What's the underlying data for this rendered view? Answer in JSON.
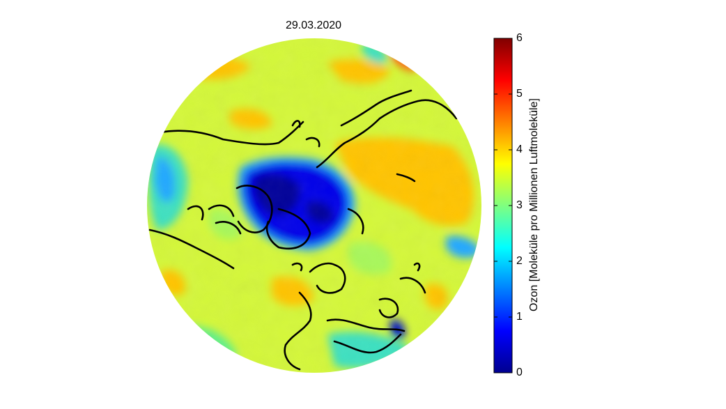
{
  "title": "29.03.2020",
  "colorbar": {
    "label": "Ozon [Moleküle pro Millionen Luftmoleküle]",
    "min": 0,
    "max": 6,
    "ticks": [
      {
        "value": 0,
        "label": "0"
      },
      {
        "value": 1,
        "label": "1"
      },
      {
        "value": 2,
        "label": "2"
      },
      {
        "value": 3,
        "label": "3"
      },
      {
        "value": 4,
        "label": "4"
      },
      {
        "value": 5,
        "label": "5"
      },
      {
        "value": 6,
        "label": "6"
      }
    ],
    "colormap": "jet",
    "colors": [
      "#00008f",
      "#0000ff",
      "#00ffff",
      "#ffff00",
      "#ff0000",
      "#800000"
    ]
  },
  "map": {
    "projection": "north-polar stereographic",
    "coastline_color": "#000000",
    "background_level": 3.5
  }
}
